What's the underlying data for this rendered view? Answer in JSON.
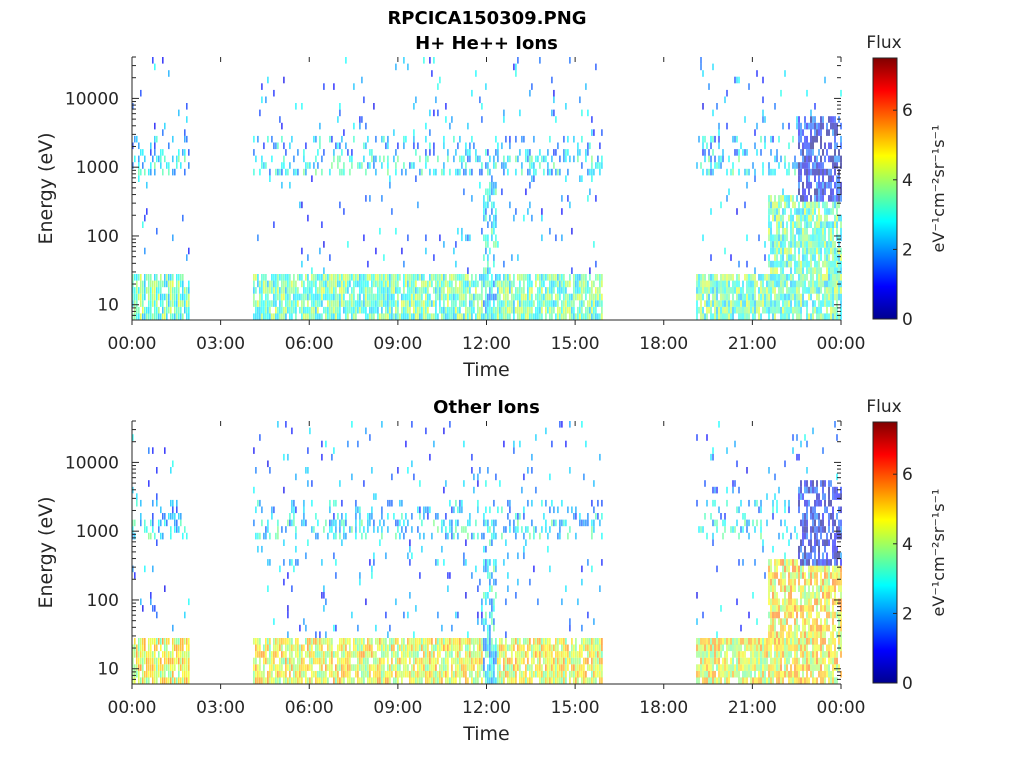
{
  "figure": {
    "main_title": "RPCICA150309.PNG"
  },
  "chart_data": [
    {
      "type": "heatmap",
      "title": "H+ He++ Ions",
      "xlabel": "Time",
      "ylabel": "Energy (eV)",
      "x_ticks": [
        "00:00",
        "03:00",
        "06:00",
        "09:00",
        "12:00",
        "15:00",
        "18:00",
        "21:00",
        "00:00"
      ],
      "x_range_hours": [
        0,
        24
      ],
      "y_scale": "log",
      "y_range": [
        6,
        40000
      ],
      "y_ticks": [
        {
          "value": 10,
          "label": "10"
        },
        {
          "value": 100,
          "label": "100"
        },
        {
          "value": 1000,
          "label": "1000"
        },
        {
          "value": 10000,
          "label": "10000"
        }
      ],
      "colorbar": {
        "title": "Flux",
        "label": "eV⁻¹cm⁻²sr⁻¹s⁻¹",
        "range": [
          0,
          7.5
        ],
        "ticks": [
          0,
          2,
          4,
          6
        ],
        "colormap": "jet"
      },
      "data_intervals_hours": [
        [
          0.0,
          1.9
        ],
        [
          4.1,
          15.9
        ],
        [
          19.1,
          24.0
        ]
      ]
    },
    {
      "type": "heatmap",
      "title": "Other Ions",
      "xlabel": "Time",
      "ylabel": "Energy (eV)",
      "x_ticks": [
        "00:00",
        "03:00",
        "06:00",
        "09:00",
        "12:00",
        "15:00",
        "18:00",
        "21:00",
        "00:00"
      ],
      "x_range_hours": [
        0,
        24
      ],
      "y_scale": "log",
      "y_range": [
        6,
        40000
      ],
      "y_ticks": [
        {
          "value": 10,
          "label": "10"
        },
        {
          "value": 100,
          "label": "100"
        },
        {
          "value": 1000,
          "label": "1000"
        },
        {
          "value": 10000,
          "label": "10000"
        }
      ],
      "colorbar": {
        "title": "Flux",
        "label": "eV⁻¹cm⁻²sr⁻¹s⁻¹",
        "range": [
          0,
          7.5
        ],
        "ticks": [
          0,
          2,
          4,
          6
        ],
        "colormap": "jet"
      },
      "data_intervals_hours": [
        [
          0.0,
          1.9
        ],
        [
          4.1,
          15.9
        ],
        [
          19.1,
          24.0
        ]
      ]
    }
  ]
}
